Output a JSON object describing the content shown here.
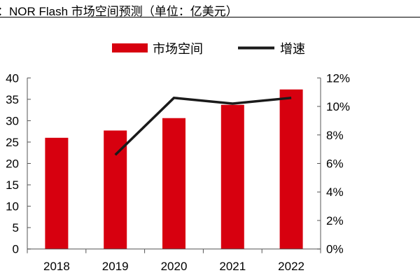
{
  "chart_data": {
    "type": "bar+line",
    "title": "：NOR Flash 市场空间预测（单位：亿美元）",
    "categories": [
      "2018",
      "2019",
      "2020",
      "2021",
      "2022"
    ],
    "series": [
      {
        "name": "市场空间",
        "type": "bar",
        "axis": "left",
        "color": "#d7000f",
        "values": [
          26.0,
          27.7,
          30.6,
          33.7,
          37.3
        ]
      },
      {
        "name": "增速",
        "type": "line",
        "axis": "right",
        "color": "#1a1a1a",
        "values": [
          null,
          6.6,
          10.6,
          10.2,
          10.6
        ]
      }
    ],
    "left_axis": {
      "ylim": [
        0,
        40
      ],
      "ticks": [
        "0",
        "5",
        "10",
        "15",
        "20",
        "25",
        "30",
        "35",
        "40"
      ]
    },
    "right_axis": {
      "ylim": [
        0,
        12
      ],
      "ticks": [
        "0%",
        "2%",
        "4%",
        "6%",
        "8%",
        "10%",
        "12%"
      ]
    },
    "grid": false,
    "legend": "top"
  }
}
